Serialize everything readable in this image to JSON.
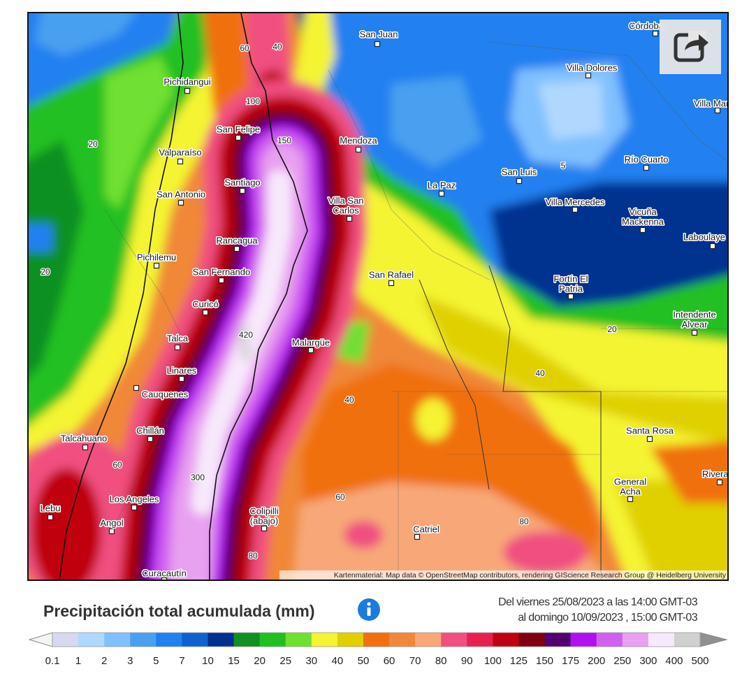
{
  "map": {
    "cities": [
      {
        "lines": [
          "San Juan"
        ]
      },
      {
        "lines": [
          "Córdoba"
        ]
      },
      {
        "lines": [
          "Villa Dolores"
        ]
      },
      {
        "lines": [
          "Villa María"
        ]
      },
      {
        "lines": [
          "Pichidangui"
        ]
      },
      {
        "lines": [
          "San Felipe"
        ]
      },
      {
        "lines": [
          "Mendoza"
        ]
      },
      {
        "lines": [
          "Valparaíso"
        ]
      },
      {
        "lines": [
          "Río Cuarto"
        ]
      },
      {
        "lines": [
          "San Luis"
        ]
      },
      {
        "lines": [
          "Santiago"
        ]
      },
      {
        "lines": [
          "La Paz"
        ]
      },
      {
        "lines": [
          "San Antonio"
        ]
      },
      {
        "lines": [
          "Villa Mercedes"
        ]
      },
      {
        "lines": [
          "Villa San",
          "Carlos"
        ]
      },
      {
        "lines": [
          "Vicuña",
          "Mackenna"
        ]
      },
      {
        "lines": [
          "Laboulaye"
        ]
      },
      {
        "lines": [
          "Rancagua"
        ]
      },
      {
        "lines": [
          "Pichilemu"
        ]
      },
      {
        "lines": [
          "San Rafael"
        ]
      },
      {
        "lines": [
          "San Fernando"
        ]
      },
      {
        "lines": [
          "Fortín El",
          "Patria"
        ]
      },
      {
        "lines": [
          "Curicó"
        ]
      },
      {
        "lines": [
          "Intendente",
          "Alvear"
        ]
      },
      {
        "lines": [
          "Talca"
        ]
      },
      {
        "lines": [
          "Malargüe"
        ]
      },
      {
        "lines": [
          "Linares"
        ]
      },
      {
        "lines": [
          "Cauquenes"
        ]
      },
      {
        "lines": [
          "Santa Rosa"
        ]
      },
      {
        "lines": [
          "Chillán"
        ]
      },
      {
        "lines": [
          "Talcahuano"
        ]
      },
      {
        "lines": [
          "Rivera"
        ]
      },
      {
        "lines": [
          "General",
          "Acha"
        ]
      },
      {
        "lines": [
          "Los Angeles"
        ]
      },
      {
        "lines": [
          "Lebu"
        ]
      },
      {
        "lines": [
          "Colipilli",
          "(abajo)"
        ]
      },
      {
        "lines": [
          "Angol"
        ]
      },
      {
        "lines": [
          "Catriel"
        ]
      },
      {
        "lines": [
          "Curacautín"
        ]
      }
    ],
    "contour_labels": [
      60,
      40,
      100,
      150,
      20,
      5,
      20,
      420,
      20,
      40,
      40,
      60,
      300,
      60,
      80,
      80
    ],
    "attribution": "Kartenmaterial: Map data © OpenStreetMap contributors, rendering GIScience Research Group @ Heidelberg University"
  },
  "legend": {
    "title": "Precipitación total acumulada (mm)",
    "period": [
      "Del viernes 25/08/2023 a las 14:00 GMT-03",
      "al domingo 10/09/2023 , 15:00 GMT-03"
    ],
    "ticks": [
      0.1,
      1,
      2,
      3,
      5,
      7,
      10,
      15,
      20,
      25,
      30,
      40,
      50,
      60,
      70,
      80,
      90,
      100,
      125,
      150,
      175,
      200,
      250,
      300,
      400,
      500
    ],
    "colors": [
      "#d8d8f2",
      "#b0d8ff",
      "#80c0ff",
      "#4aa0f0",
      "#2080f0",
      "#1060d0",
      "#003090",
      "#109020",
      "#20c020",
      "#70e030",
      "#f4f430",
      "#e0d000",
      "#f07010",
      "#f08838",
      "#f8a878",
      "#f05080",
      "#e82050",
      "#c00010",
      "#800010",
      "#500070",
      "#b010f0",
      "#d060f0",
      "#e8a0f0",
      "#f8e8fc",
      "#d0d0d0"
    ]
  }
}
